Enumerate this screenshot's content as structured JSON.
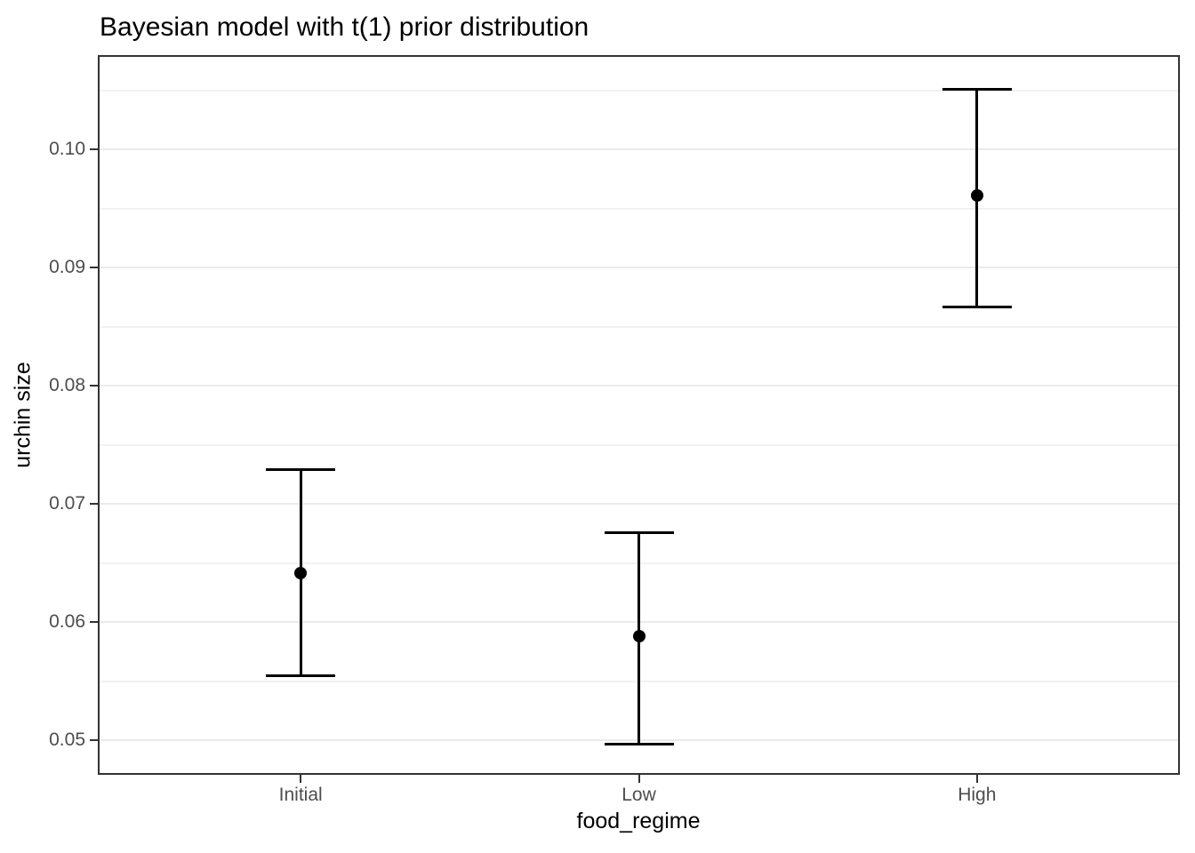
{
  "chart_data": {
    "type": "pointrange",
    "title": "Bayesian model with t(1) prior distribution",
    "xlabel": "food_regime",
    "ylabel": "urchin size",
    "categories": [
      "Initial",
      "Low",
      "High"
    ],
    "points": [
      {
        "category": "Initial",
        "estimate": 0.0642,
        "lower": 0.0555,
        "upper": 0.0729
      },
      {
        "category": "Low",
        "estimate": 0.0588,
        "lower": 0.0497,
        "upper": 0.0676
      },
      {
        "category": "High",
        "estimate": 0.0961,
        "lower": 0.0867,
        "upper": 0.1051
      }
    ],
    "y_ticks": [
      {
        "value": 0.05,
        "label": "0.05"
      },
      {
        "value": 0.06,
        "label": "0.06"
      },
      {
        "value": 0.07,
        "label": "0.07"
      },
      {
        "value": 0.08,
        "label": "0.08"
      },
      {
        "value": 0.09,
        "label": "0.09"
      },
      {
        "value": 0.1,
        "label": "0.10"
      }
    ],
    "y_minor_ticks": [
      0.055,
      0.065,
      0.075,
      0.085,
      0.095,
      0.105
    ],
    "ylim": [
      0.0471,
      0.108
    ],
    "grid": true,
    "legend": "none",
    "colors": {
      "data": "#000000",
      "title": "#000000",
      "panel_border": "#333333",
      "major_grid": "#ebebeb",
      "minor_grid": "#f2f2f2",
      "tick_mark": "#333333",
      "tick_label": "#4d4d4d"
    }
  }
}
